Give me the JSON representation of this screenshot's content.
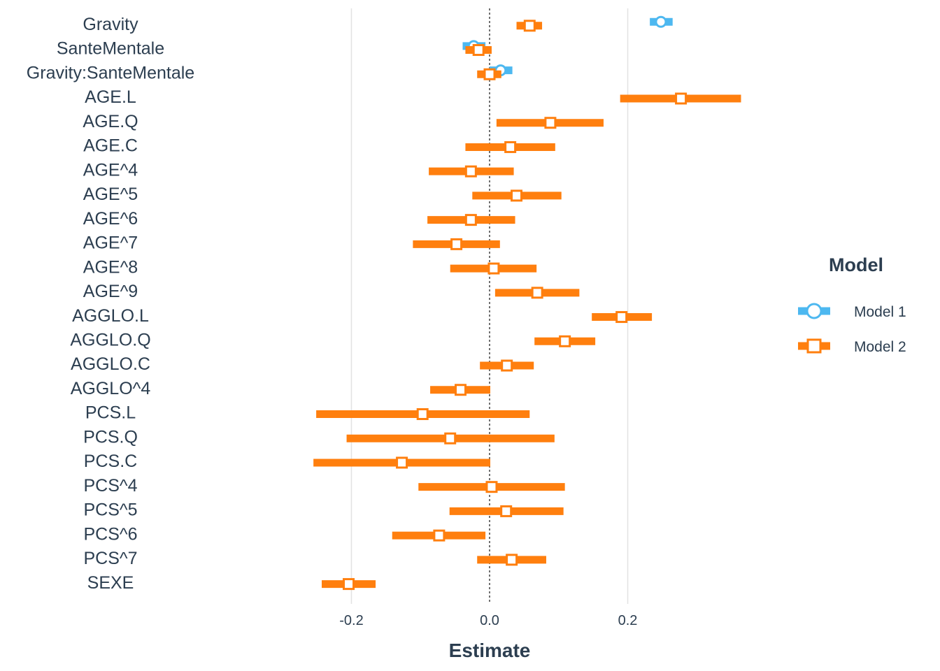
{
  "chart_data": {
    "type": "scatter",
    "subtype": "coefficient-plot",
    "title": "",
    "xlabel": "Estimate",
    "ylabel": "",
    "xlim": [
      -0.405,
      0.405
    ],
    "xticks": [
      -0.2,
      0.0,
      0.2
    ],
    "xtick_labels": [
      "-0.2",
      "0.0",
      "0.2"
    ],
    "reference_line": 0,
    "grid": "vertical major lines only",
    "legend_title": "Model",
    "legend_position": "right",
    "categories": [
      "Gravity",
      "SanteMentale",
      "Gravity:SanteMentale",
      "AGE.L",
      "AGE.Q",
      "AGE.C",
      "AGE^4",
      "AGE^5",
      "AGE^6",
      "AGE^7",
      "AGE^8",
      "AGE^9",
      "AGGLO.L",
      "AGGLO.Q",
      "AGGLO.C",
      "AGGLO^4",
      "PCS.L",
      "PCS.Q",
      "PCS.C",
      "PCS^4",
      "PCS^5",
      "PCS^6",
      "PCS^7",
      "SEXE"
    ],
    "series": [
      {
        "name": "Model 1",
        "color": "#4db8f0",
        "marker": "circle",
        "points": [
          {
            "term": "Gravity",
            "estimate": 0.248,
            "low": 0.232,
            "high": 0.265
          },
          {
            "term": "SanteMentale",
            "estimate": -0.023,
            "low": -0.039,
            "high": -0.006
          },
          {
            "term": "Gravity:SanteMentale",
            "estimate": 0.016,
            "low": 0.0,
            "high": 0.033
          }
        ]
      },
      {
        "name": "Model 2",
        "color": "#ff7f0e",
        "marker": "square",
        "points": [
          {
            "term": "Gravity",
            "estimate": 0.058,
            "low": 0.039,
            "high": 0.076
          },
          {
            "term": "SanteMentale",
            "estimate": -0.016,
            "low": -0.035,
            "high": 0.003
          },
          {
            "term": "Gravity:SanteMentale",
            "estimate": 0.0,
            "low": -0.018,
            "high": 0.017
          },
          {
            "term": "AGE.L",
            "estimate": 0.277,
            "low": 0.189,
            "high": 0.364
          },
          {
            "term": "AGE.Q",
            "estimate": 0.088,
            "low": 0.01,
            "high": 0.165
          },
          {
            "term": "AGE.C",
            "estimate": 0.03,
            "low": -0.035,
            "high": 0.095
          },
          {
            "term": "AGE^4",
            "estimate": -0.027,
            "low": -0.088,
            "high": 0.035
          },
          {
            "term": "AGE^5",
            "estimate": 0.039,
            "low": -0.025,
            "high": 0.104
          },
          {
            "term": "AGE^6",
            "estimate": -0.027,
            "low": -0.09,
            "high": 0.037
          },
          {
            "term": "AGE^7",
            "estimate": -0.048,
            "low": -0.111,
            "high": 0.015
          },
          {
            "term": "AGE^8",
            "estimate": 0.006,
            "low": -0.057,
            "high": 0.068
          },
          {
            "term": "AGE^9",
            "estimate": 0.069,
            "low": 0.008,
            "high": 0.13
          },
          {
            "term": "AGGLO.L",
            "estimate": 0.191,
            "low": 0.148,
            "high": 0.235
          },
          {
            "term": "AGGLO.Q",
            "estimate": 0.109,
            "low": 0.065,
            "high": 0.153
          },
          {
            "term": "AGGLO.C",
            "estimate": 0.025,
            "low": -0.014,
            "high": 0.064
          },
          {
            "term": "AGGLO^4",
            "estimate": -0.042,
            "low": -0.086,
            "high": 0.001
          },
          {
            "term": "PCS.L",
            "estimate": -0.097,
            "low": -0.251,
            "high": 0.058
          },
          {
            "term": "PCS.Q",
            "estimate": -0.057,
            "low": -0.207,
            "high": 0.094
          },
          {
            "term": "PCS.C",
            "estimate": -0.127,
            "low": -0.255,
            "high": 0.001
          },
          {
            "term": "PCS^4",
            "estimate": 0.003,
            "low": -0.103,
            "high": 0.109
          },
          {
            "term": "PCS^5",
            "estimate": 0.024,
            "low": -0.058,
            "high": 0.107
          },
          {
            "term": "PCS^6",
            "estimate": -0.073,
            "low": -0.141,
            "high": -0.006
          },
          {
            "term": "PCS^7",
            "estimate": 0.032,
            "low": -0.018,
            "high": 0.082
          },
          {
            "term": "SEXE",
            "estimate": -0.204,
            "low": -0.243,
            "high": -0.165
          }
        ]
      }
    ]
  }
}
